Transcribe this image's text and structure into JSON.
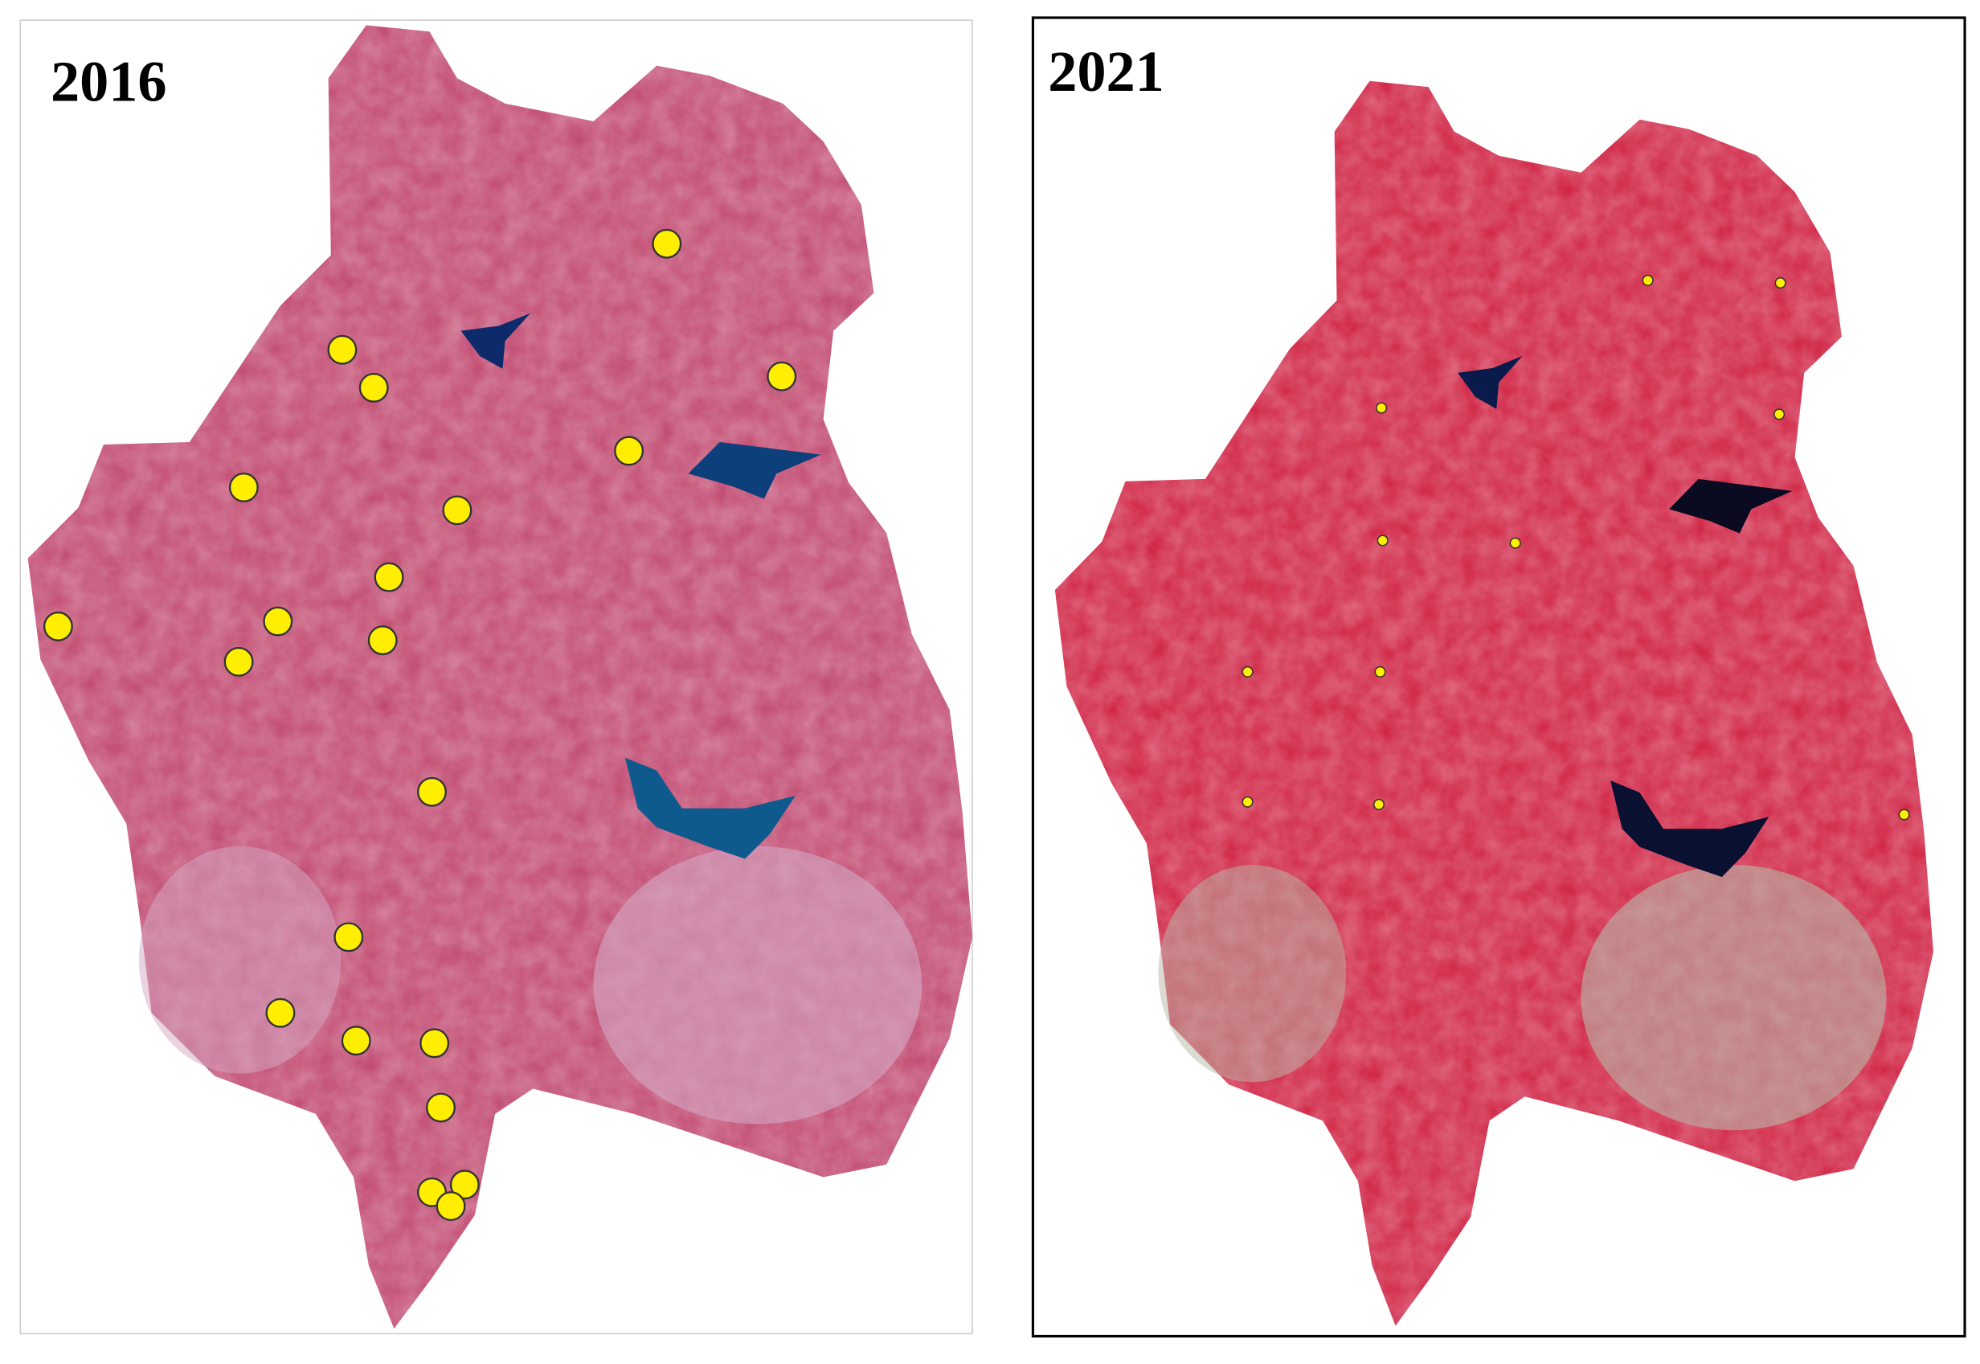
{
  "panels": [
    {
      "title": "2016"
    },
    {
      "title": "2021"
    }
  ]
}
